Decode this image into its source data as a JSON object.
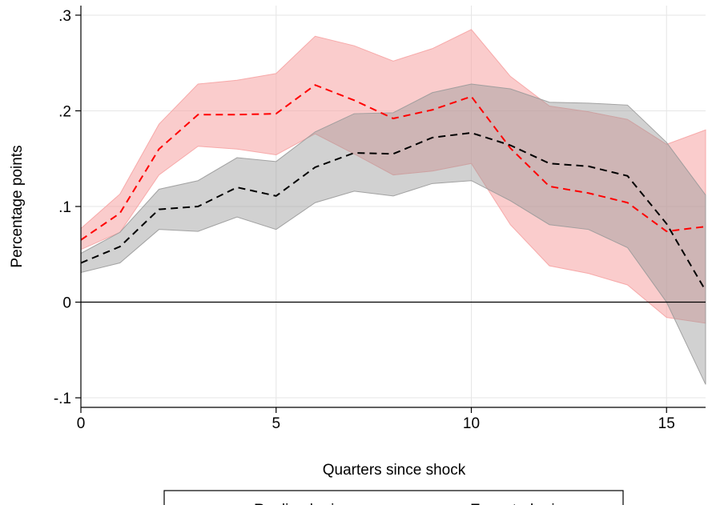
{
  "chart_data": {
    "type": "line",
    "title": "",
    "xlabel": "Quarters since shock",
    "ylabel": "Percentage points",
    "xlim": [
      0,
      16
    ],
    "ylim": [
      -0.1,
      0.3
    ],
    "xticks": [
      0,
      5,
      10,
      15
    ],
    "xtick_labels": [
      "0",
      "5",
      "10",
      "15"
    ],
    "yticks": [
      -0.1,
      0,
      0.1,
      0.2,
      0.3
    ],
    "ytick_labels": [
      "-.1",
      "0",
      ".1",
      ".2",
      ".3"
    ],
    "grid": true,
    "zero_line": true,
    "legend_position": "bottom",
    "x": [
      0,
      1,
      2,
      3,
      4,
      5,
      6,
      7,
      8,
      9,
      10,
      11,
      12,
      13,
      14,
      15,
      16
    ],
    "series": [
      {
        "name": "Realised price",
        "color": "#ff0000",
        "band_color": "#f6a3a3",
        "values": [
          0.065,
          0.093,
          0.16,
          0.196,
          0.196,
          0.197,
          0.227,
          0.211,
          0.192,
          0.201,
          0.215,
          0.161,
          0.121,
          0.114,
          0.104,
          0.074,
          0.079
        ],
        "upper": [
          0.077,
          0.113,
          0.186,
          0.228,
          0.232,
          0.239,
          0.278,
          0.268,
          0.252,
          0.265,
          0.285,
          0.236,
          0.205,
          0.199,
          0.191,
          0.165,
          0.18
        ],
        "lower": [
          0.055,
          0.073,
          0.133,
          0.163,
          0.16,
          0.154,
          0.176,
          0.155,
          0.133,
          0.137,
          0.145,
          0.081,
          0.038,
          0.03,
          0.018,
          -0.016,
          -0.022
        ]
      },
      {
        "name": "Expected price",
        "color": "#000000",
        "band_color": "#9a9a9a",
        "values": [
          0.041,
          0.058,
          0.097,
          0.1,
          0.12,
          0.111,
          0.141,
          0.156,
          0.155,
          0.172,
          0.177,
          0.164,
          0.145,
          0.142,
          0.132,
          0.082,
          0.012
        ],
        "upper": [
          0.051,
          0.073,
          0.118,
          0.127,
          0.151,
          0.147,
          0.178,
          0.197,
          0.198,
          0.219,
          0.228,
          0.223,
          0.209,
          0.208,
          0.206,
          0.167,
          0.112
        ],
        "lower": [
          0.031,
          0.041,
          0.076,
          0.074,
          0.089,
          0.076,
          0.104,
          0.116,
          0.111,
          0.124,
          0.127,
          0.106,
          0.081,
          0.076,
          0.057,
          0.0,
          -0.086
        ]
      }
    ]
  }
}
